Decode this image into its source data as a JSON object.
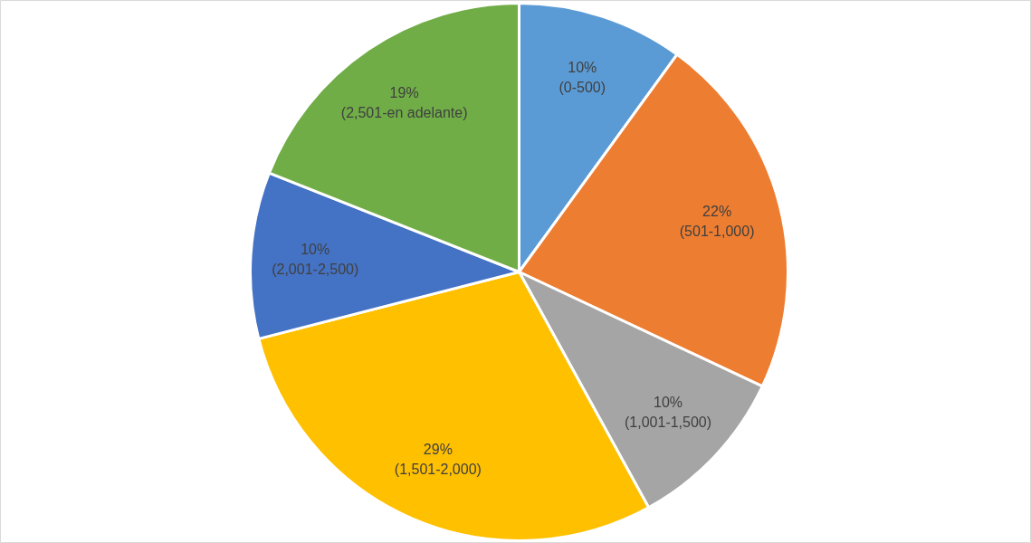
{
  "chart_data": {
    "type": "pie",
    "categories": [
      "(0-500)",
      "(501-1,000)",
      "(1,001-1,500)",
      "(1,501-2,000)",
      "(2,001-2,500)",
      "(2,501-en adelante)"
    ],
    "values": [
      10,
      22,
      10,
      29,
      10,
      19
    ],
    "value_labels": [
      "10%",
      "22%",
      "10%",
      "29%",
      "10%",
      "19%"
    ],
    "colors": [
      "#5b9bd5",
      "#ed7d31",
      "#a5a5a5",
      "#ffc000",
      "#4472c4",
      "#70ad47"
    ],
    "legend": false
  }
}
